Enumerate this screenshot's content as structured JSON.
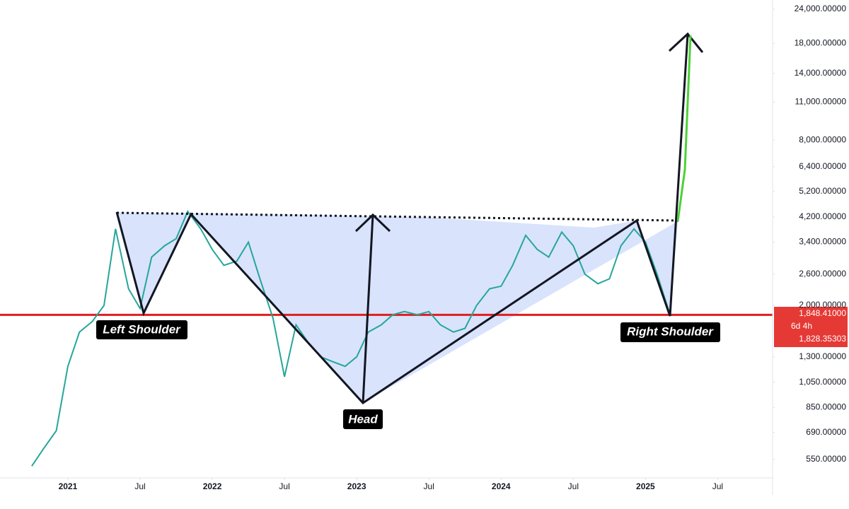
{
  "chart_data": {
    "type": "line",
    "log_scale": true,
    "grid": false,
    "x": [
      2020.75,
      2020.83,
      2020.92,
      2021.0,
      2021.08,
      2021.17,
      2021.25,
      2021.33,
      2021.42,
      2021.5,
      2021.58,
      2021.67,
      2021.75,
      2021.83,
      2021.92,
      2022.0,
      2022.08,
      2022.17,
      2022.25,
      2022.33,
      2022.42,
      2022.5,
      2022.58,
      2022.67,
      2022.75,
      2022.83,
      2022.92,
      2023.0,
      2023.08,
      2023.17,
      2023.25,
      2023.33,
      2023.42,
      2023.5,
      2023.58,
      2023.67,
      2023.75,
      2023.83,
      2023.92,
      2024.0,
      2024.08,
      2024.17,
      2024.25,
      2024.33,
      2024.42,
      2024.5,
      2024.58,
      2024.67,
      2024.75,
      2024.83,
      2024.92,
      2025.0,
      2025.08,
      2025.17
    ],
    "series": [
      {
        "color": "#26a69a",
        "values": [
          520,
          600,
          700,
          1200,
          1600,
          1750,
          2000,
          3800,
          2300,
          1950,
          3000,
          3300,
          3500,
          4400,
          3800,
          3200,
          2800,
          2900,
          3400,
          2500,
          1800,
          1100,
          1700,
          1450,
          1300,
          1250,
          1200,
          1300,
          1600,
          1700,
          1850,
          1900,
          1850,
          1900,
          1700,
          1600,
          1650,
          2000,
          2300,
          2350,
          2800,
          3600,
          3200,
          3000,
          3700,
          3300,
          2600,
          2400,
          2500,
          3300,
          3800,
          3400,
          2600,
          1850
        ]
      }
    ],
    "xlim": [
      2020.53,
      2025.88
    ],
    "xticks": [
      2021,
      {
        "value": 2021.5,
        "label": "Jul"
      },
      2022,
      {
        "value": 2022.5,
        "label": "Jul"
      },
      2023,
      {
        "value": 2023.5,
        "label": "Jul"
      },
      2024,
      {
        "value": 2024.5,
        "label": "Jul"
      },
      2025,
      {
        "value": 2025.5,
        "label": "Jul"
      }
    ],
    "ylim": [
      471,
      25900
    ],
    "yticks": [
      {
        "value": 550,
        "label": "550.00000"
      },
      {
        "value": 690,
        "label": "690.00000"
      },
      {
        "value": 850,
        "label": "850.00000"
      },
      {
        "value": 1050,
        "label": "1,050.00000"
      },
      {
        "value": 1300,
        "label": "1,300.00000"
      },
      {
        "value": 2000,
        "label": "2,000.00000"
      },
      {
        "value": 2600,
        "label": "2,600.00000"
      },
      {
        "value": 3400,
        "label": "3,400.00000"
      },
      {
        "value": 4200,
        "label": "4,200.00000"
      },
      {
        "value": 5200,
        "label": "5,200.00000"
      },
      {
        "value": 6400,
        "label": "6,400.00000"
      },
      {
        "value": 8000,
        "label": "8,000.00000"
      },
      {
        "value": 11000,
        "label": "11,000.00000"
      },
      {
        "value": 14000,
        "label": "14,000.00000"
      },
      {
        "value": 18000,
        "label": "18,000.00000"
      },
      {
        "value": 24000,
        "label": "24,000.00000"
      }
    ],
    "current_price": {
      "value": 1848.41,
      "label": "1,848.41000"
    },
    "countdown": "6d 4h",
    "bid_price": {
      "value": 1828.35303,
      "label": "1,828.35303"
    },
    "annotations": [
      "Left Shoulder",
      "Head",
      "Right Shoulder"
    ]
  }
}
